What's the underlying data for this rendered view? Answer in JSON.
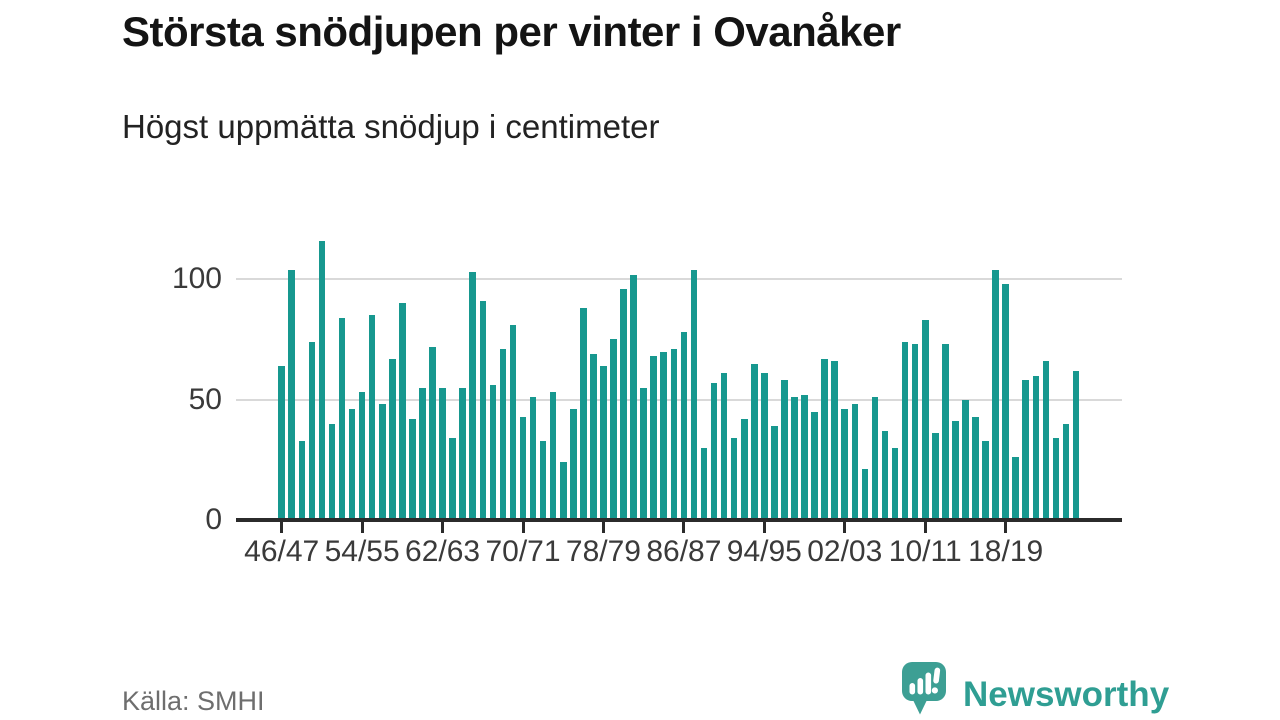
{
  "header": {
    "title": "Största snödjupen per vinter i Ovanåker",
    "subtitle": "Högst uppmätta snödjup i centimeter"
  },
  "footer": {
    "source": "Källa: SMHI",
    "brand_name": "Newsworthy"
  },
  "colors": {
    "bar": "#17988f",
    "axis": "#2b2b2b",
    "gridline": "#d9d9d9",
    "tick_text": "#3a3a3a",
    "brand_teal": "#2f9e93",
    "source_text": "#6e6e6e"
  },
  "chart_data": {
    "type": "bar",
    "title": "Största snödjupen per vinter i Ovanåker",
    "subtitle": "Högst uppmätta snödjup i centimeter",
    "unit": "centimeter (cm)",
    "source": "SMHI",
    "categories": [
      "46/47",
      "47/48",
      "48/49",
      "49/50",
      "50/51",
      "51/52",
      "52/53",
      "53/54",
      "54/55",
      "55/56",
      "56/57",
      "57/58",
      "58/59",
      "59/60",
      "60/61",
      "61/62",
      "62/63",
      "63/64",
      "64/65",
      "65/66",
      "66/67",
      "67/68",
      "68/69",
      "69/70",
      "70/71",
      "71/72",
      "72/73",
      "73/74",
      "74/75",
      "75/76",
      "76/77",
      "77/78",
      "78/79",
      "79/80",
      "80/81",
      "81/82",
      "82/83",
      "83/84",
      "84/85",
      "85/86",
      "86/87",
      "87/88",
      "88/89",
      "89/90",
      "90/91",
      "91/92",
      "92/93",
      "93/94",
      "94/95",
      "95/96",
      "96/97",
      "97/98",
      "98/99",
      "99/00",
      "00/01",
      "01/02",
      "02/03",
      "03/04",
      "04/05",
      "05/06",
      "06/07",
      "07/08",
      "08/09",
      "09/10",
      "10/11",
      "11/12",
      "12/13",
      "13/14",
      "14/15",
      "15/16",
      "16/17",
      "17/18",
      "18/19",
      "19/20",
      "20/21",
      "21/22",
      "22/23",
      "23/24",
      "24/25",
      "25/26"
    ],
    "values": [
      64,
      104,
      33,
      74,
      116,
      40,
      84,
      46,
      53,
      85,
      48,
      67,
      90,
      42,
      55,
      72,
      55,
      34,
      55,
      103,
      91,
      56,
      71,
      81,
      43,
      51,
      33,
      53,
      24,
      46,
      88,
      69,
      64,
      75,
      96,
      102,
      55,
      68,
      70,
      71,
      78,
      104,
      30,
      57,
      61,
      34,
      42,
      65,
      61,
      39,
      58,
      51,
      52,
      45,
      67,
      66,
      46,
      48,
      21,
      51,
      37,
      30,
      74,
      73,
      83,
      36,
      73,
      41,
      50,
      43,
      33,
      104,
      98,
      26,
      58,
      60,
      66,
      34,
      40,
      62
    ],
    "x_tick_labels": [
      "46/47",
      "54/55",
      "62/63",
      "70/71",
      "78/79",
      "86/87",
      "94/95",
      "02/03",
      "10/11",
      "18/19"
    ],
    "x_tick_every": 8,
    "yticks": [
      0,
      50,
      100
    ],
    "ylim": [
      0,
      120
    ],
    "grid": "horizontal",
    "legend": "none",
    "bar_color": "#17988f"
  }
}
